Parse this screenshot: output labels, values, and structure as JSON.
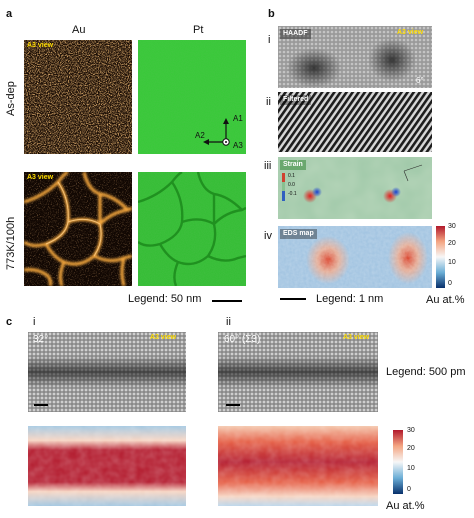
{
  "panel_a": {
    "label": "a",
    "col_au": "Au",
    "col_pt": "Pt",
    "row1": "As-dep",
    "row2": "773K/100h",
    "view_tag": "A3 view",
    "axis_a1": "A1",
    "axis_a2": "A2",
    "axis_a3": "A3",
    "legend": "Legend: 50 nm",
    "colors": {
      "au_grain": "#f0a24a",
      "au_bg": "#1a0d05",
      "pt_green": "#33cc33",
      "pt_dark": "#1f8a1f"
    }
  },
  "panel_b": {
    "label": "b",
    "rows": [
      {
        "num": "i",
        "tag": "HAADF",
        "view": "A3 view",
        "angle": "6°"
      },
      {
        "num": "ii",
        "tag": "Filtered"
      },
      {
        "num": "iii",
        "tag": "Strain",
        "ticks": [
          "0.1",
          "0.0",
          "-0.1"
        ]
      },
      {
        "num": "iv",
        "tag": "EDS map"
      }
    ],
    "colorbar": {
      "max": "30",
      "mid": "20",
      "low": "10",
      "min": "0",
      "unit": "Au at.%"
    },
    "legend": "Legend: 1 nm"
  },
  "panel_c": {
    "label": "c",
    "left": {
      "num": "i",
      "angle": "32°",
      "view": "A3 view"
    },
    "right": {
      "num": "ii",
      "angle": "60° (Σ3)",
      "view": "A3 view"
    },
    "legend": "Legend: 500 pm",
    "colorbar": {
      "max": "30",
      "mid": "20",
      "low": "10",
      "min": "0",
      "unit": "Au at.%"
    }
  }
}
